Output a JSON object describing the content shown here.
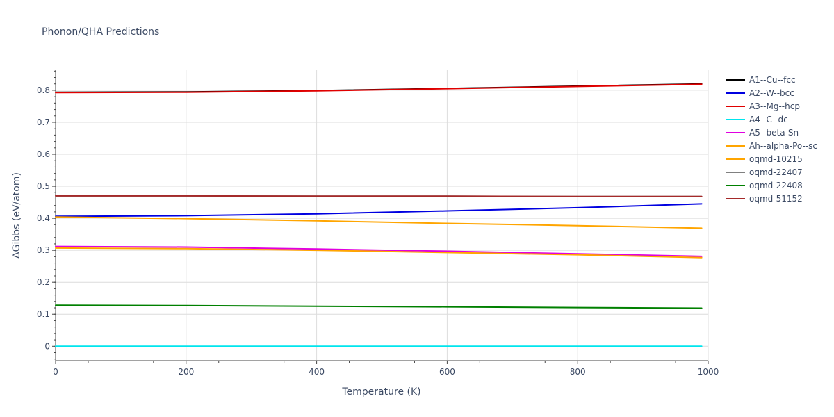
{
  "chart_data": {
    "type": "line",
    "title": "Phonon/QHA Predictions",
    "xlabel": "Temperature (K)",
    "ylabel": "ΔGibbs (eV/atom)",
    "xlim": [
      0,
      1000
    ],
    "ylim": [
      -0.045,
      0.865
    ],
    "x_ticks": [
      0,
      200,
      400,
      600,
      800,
      1000
    ],
    "y_ticks": [
      0,
      0.1,
      0.2,
      0.3,
      0.4,
      0.5,
      0.6,
      0.7,
      0.8
    ],
    "grid": true,
    "legend_position": "right",
    "series": [
      {
        "name": "A1--Cu--fcc",
        "color": "#000000",
        "x": [
          0,
          200,
          400,
          600,
          800,
          990
        ],
        "y": [
          0.794,
          0.795,
          0.799,
          0.806,
          0.813,
          0.82
        ]
      },
      {
        "name": "A2--W--bcc",
        "color": "#0000e0",
        "x": [
          0,
          200,
          400,
          600,
          800,
          990
        ],
        "y": [
          0.406,
          0.408,
          0.414,
          0.423,
          0.433,
          0.445
        ]
      },
      {
        "name": "A3--Mg--hcp",
        "color": "#e00000",
        "x": [
          0,
          200,
          400,
          600,
          800,
          990
        ],
        "y": [
          0.793,
          0.794,
          0.798,
          0.805,
          0.812,
          0.819
        ]
      },
      {
        "name": "A4--C--dc",
        "color": "#00e5ee",
        "x": [
          0,
          200,
          400,
          600,
          800,
          990
        ],
        "y": [
          0.0,
          0.0,
          0.0,
          0.0,
          0.0,
          0.0
        ]
      },
      {
        "name": "A5--beta-Sn",
        "color": "#e000e0",
        "x": [
          0,
          200,
          400,
          600,
          800,
          990
        ],
        "y": [
          0.312,
          0.31,
          0.304,
          0.297,
          0.289,
          0.281
        ]
      },
      {
        "name": "Ah--alpha-Po--sc",
        "color": "#ffa500",
        "x": [
          0,
          200,
          400,
          600,
          800,
          990
        ],
        "y": [
          0.307,
          0.305,
          0.3,
          0.293,
          0.286,
          0.277
        ]
      },
      {
        "name": "oqmd-10215",
        "color": "#ffa500",
        "x": [
          0,
          200,
          400,
          600,
          800,
          990
        ],
        "y": [
          0.404,
          0.399,
          0.392,
          0.384,
          0.377,
          0.369
        ]
      },
      {
        "name": "oqmd-22407",
        "color": "#808080",
        "x": [
          0,
          200,
          400,
          600,
          800,
          990
        ],
        "y": [
          0.47,
          0.47,
          0.469,
          0.469,
          0.468,
          0.468
        ]
      },
      {
        "name": "oqmd-22408",
        "color": "#008000",
        "x": [
          0,
          200,
          400,
          600,
          800,
          990
        ],
        "y": [
          0.128,
          0.127,
          0.125,
          0.123,
          0.121,
          0.119
        ]
      },
      {
        "name": "oqmd-51152",
        "color": "#a52a2a",
        "x": [
          0,
          200,
          400,
          600,
          800,
          990
        ],
        "y": [
          0.47,
          0.47,
          0.469,
          0.469,
          0.468,
          0.468
        ]
      }
    ]
  }
}
